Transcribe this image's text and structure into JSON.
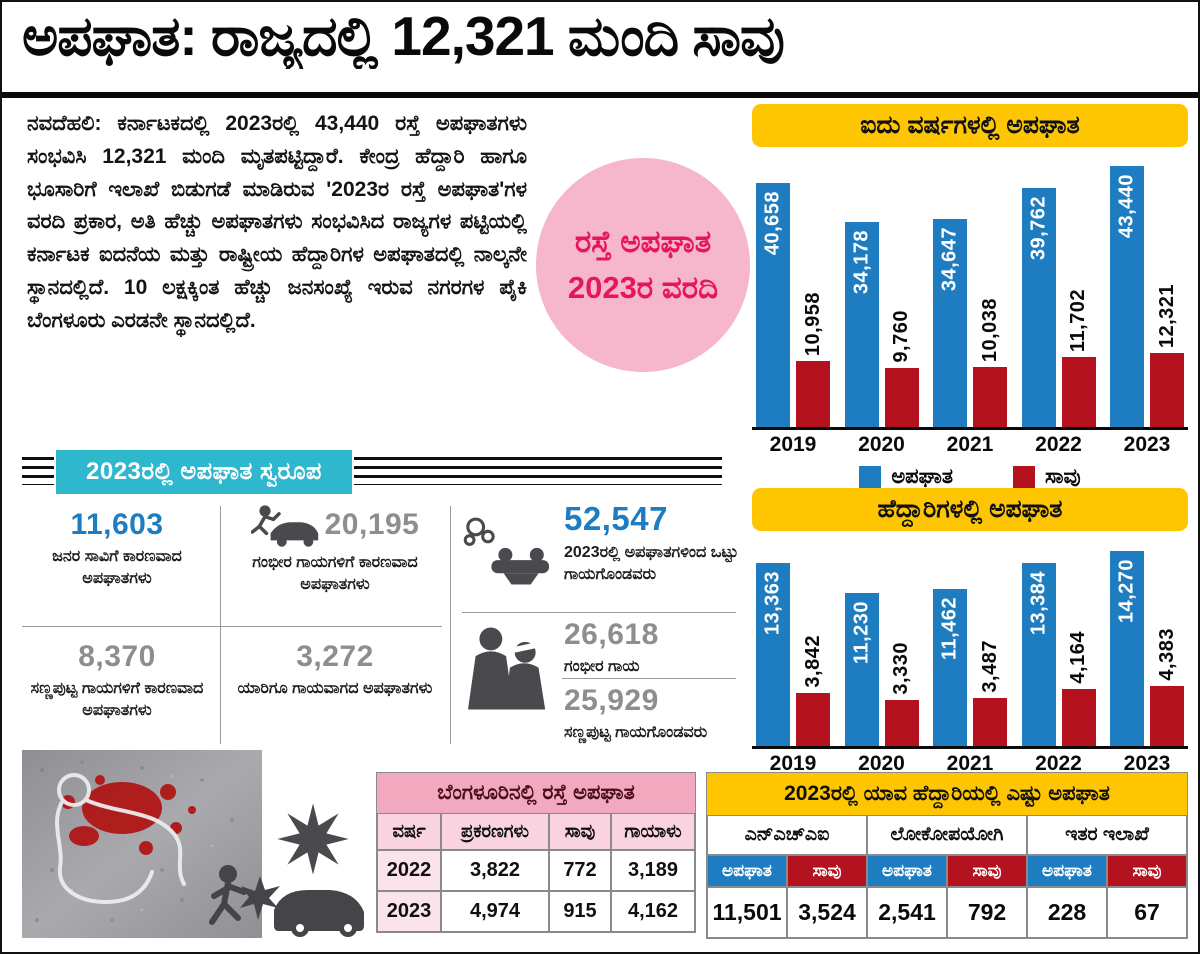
{
  "page": {
    "headline": "ಅಪಘಾತ: ರಾಜ್ಯದಲ್ಲಿ 12,321 ಮಂದಿ ಸಾವು",
    "body_text": "ನವದೆಹಲಿ: ಕರ್ನಾಟಕದಲ್ಲಿ 2023ರಲ್ಲಿ 43,440 ರಸ್ತೆ ಅಪಘಾತಗಳು ಸಂಭವಿಸಿ 12,321 ಮಂದಿ ಮೃತಪಟ್ಟಿದ್ದಾರೆ. ಕೇಂದ್ರ ಹೆದ್ದಾರಿ ಹಾಗೂ ಭೂಸಾರಿಗೆ ಇಲಾಖೆ ಬಿಡುಗಡೆ ಮಾಡಿರುವ '2023ರ ರಸ್ತೆ ಅಪಘಾತ'ಗಳ ವರದಿ ಪ್ರಕಾರ, ಅತಿ ಹೆಚ್ಚು ಅಪಘಾತಗಳು ಸಂಭವಿಸಿದ ರಾಜ್ಯಗಳ ಪಟ್ಟಿಯಲ್ಲಿ ಕರ್ನಾಟಕ ಐದನೆಯ ಮತ್ತು ರಾಷ್ಟ್ರೀಯ ಹೆದ್ದಾರಿಗಳ ಅಪಘಾತದಲ್ಲಿ ನಾಲ್ಕನೇ ಸ್ಥಾನದಲ್ಲಿದೆ. 10 ಲಕ್ಷಕ್ಕಿಂತ ಹೆಚ್ಚು ಜನಸಂಖ್ಯೆ ಇರುವ ನಗರಗಳ ಪೈಕಿ ಬೆಂಗಳೂರು ಎರಡನೇ ಸ್ಥಾನದಲ್ಲಿದೆ."
  },
  "badge": {
    "line1": "ರಸ್ತೆ ಅಪಘಾತ",
    "line2": "2023ರ ವರದಿ"
  },
  "chart_data": [
    {
      "type": "bar",
      "title": "ಐದು ವರ್ಷಗಳಲ್ಲಿ ಅಪಘಾತ",
      "categories": [
        "2019",
        "2020",
        "2021",
        "2022",
        "2023"
      ],
      "series": [
        {
          "name": "ಅಪಘಾತ",
          "color": "#1d7dc0",
          "values": [
            40658,
            34178,
            34647,
            39762,
            43440
          ],
          "labels": [
            "40,658",
            "34,178",
            "34,647",
            "39,762",
            "43,440"
          ]
        },
        {
          "name": "ಸಾವು",
          "color": "#b5121f",
          "values": [
            10958,
            9760,
            10038,
            11702,
            12321
          ],
          "labels": [
            "10,958",
            "9,760",
            "10,038",
            "11,702",
            "12,321"
          ]
        }
      ],
      "ylim": [
        0,
        45000
      ],
      "grid": false,
      "legend_position": "bottom"
    },
    {
      "type": "bar",
      "title": "ಹೆದ್ದಾರಿಗಳಲ್ಲಿ ಅಪಘಾತ",
      "categories": [
        "2019",
        "2020",
        "2021",
        "2022",
        "2023"
      ],
      "series": [
        {
          "name": "ಅಪಘಾತ",
          "color": "#1d7dc0",
          "values": [
            13363,
            11230,
            11462,
            13384,
            14270
          ],
          "labels": [
            "13,363",
            "11,230",
            "11,462",
            "13,384",
            "14,270"
          ]
        },
        {
          "name": "ಸಾವು",
          "color": "#b5121f",
          "values": [
            3842,
            3330,
            3487,
            4164,
            4383
          ],
          "labels": [
            "3,842",
            "3,330",
            "3,487",
            "4,164",
            "4,383"
          ]
        }
      ],
      "ylim": [
        0,
        15000
      ],
      "grid": false,
      "legend_position": "none"
    }
  ],
  "stats_section": {
    "header": "2023ರಲ್ಲಿ ಅಪಘಾತ ಸ್ವರೂಪ",
    "items": [
      {
        "value": "11,603",
        "label": "ಜನರ ಸಾವಿಗೆ ಕಾರಣವಾದ ಅಪಘಾತಗಳು",
        "color": "blue"
      },
      {
        "value": "20,195",
        "label": "ಗಂಭೀರ ಗಾಯಗಳಿಗೆ ಕಾರಣವಾದ ಅಪಘಾತಗಳು",
        "color": "gray"
      },
      {
        "value": "8,370",
        "label": "ಸಣ್ಣಪುಟ್ಟ ಗಾಯಗಳಿಗೆ ಕಾರಣವಾದ ಅಪಘಾತಗಳು",
        "color": "gray"
      },
      {
        "value": "3,272",
        "label": "ಯಾರಿಗೂ ಗಾಯವಾಗದ ಅಪಘಾತಗಳು",
        "color": "gray"
      },
      {
        "value": "52,547",
        "label": "2023ರಲ್ಲಿ ಅಪಘಾತಗಳಿಂದ ಒಟ್ಟು ಗಾಯಗೊಂಡವರು",
        "color": "blue"
      },
      {
        "value": "26,618",
        "label": "ಗಂಭೀರ ಗಾಯ",
        "color": "gray"
      },
      {
        "value": "25,929",
        "label": "ಸಣ್ಣಪುಟ್ಟ ಗಾಯಗೊಂಡವರು",
        "color": "gray"
      }
    ]
  },
  "bengaluru_table": {
    "title": "ಬೆಂಗಳೂರಿನಲ್ಲಿ ರಸ್ತೆ ಅಪಘಾತ",
    "columns": [
      "ವರ್ಷ",
      "ಪ್ರಕರಣಗಳು",
      "ಸಾವು",
      "ಗಾಯಾಳು"
    ],
    "rows": [
      [
        "2022",
        "3,822",
        "772",
        "3,189"
      ],
      [
        "2023",
        "4,974",
        "915",
        "4,162"
      ]
    ]
  },
  "highway_table": {
    "title": "2023ರಲ್ಲಿ ಯಾವ ಹೆದ್ದಾರಿಯಲ್ಲಿ ಎಷ್ಟು ಅಪಘಾತ",
    "groups": [
      "ಎನ್ಎಚ್ಎಐ",
      "ಲೋಕೋಪಯೋಗಿ",
      "ಇತರ ಇಲಾಖೆ"
    ],
    "sub_headers": [
      "ಅಪಘಾತ",
      "ಸಾವು"
    ],
    "values": [
      "11,501",
      "3,524",
      "2,541",
      "792",
      "228",
      "67"
    ]
  },
  "colors": {
    "accident_blue": "#1d7dc0",
    "death_red": "#b5121f",
    "header_yellow": "#fdc600",
    "header_cyan": "#2eb7cd",
    "badge_pink_bg": "#f6b6cb",
    "badge_text": "#e5175a",
    "bengaluru_header_pink": "#f2a9bf"
  },
  "icons": [
    "car-hit-person-icon",
    "overturned-car-icon",
    "injured-person-icon",
    "collision-star-icon",
    "car-crash-icon",
    "chalk-outline",
    "blood-stain"
  ]
}
